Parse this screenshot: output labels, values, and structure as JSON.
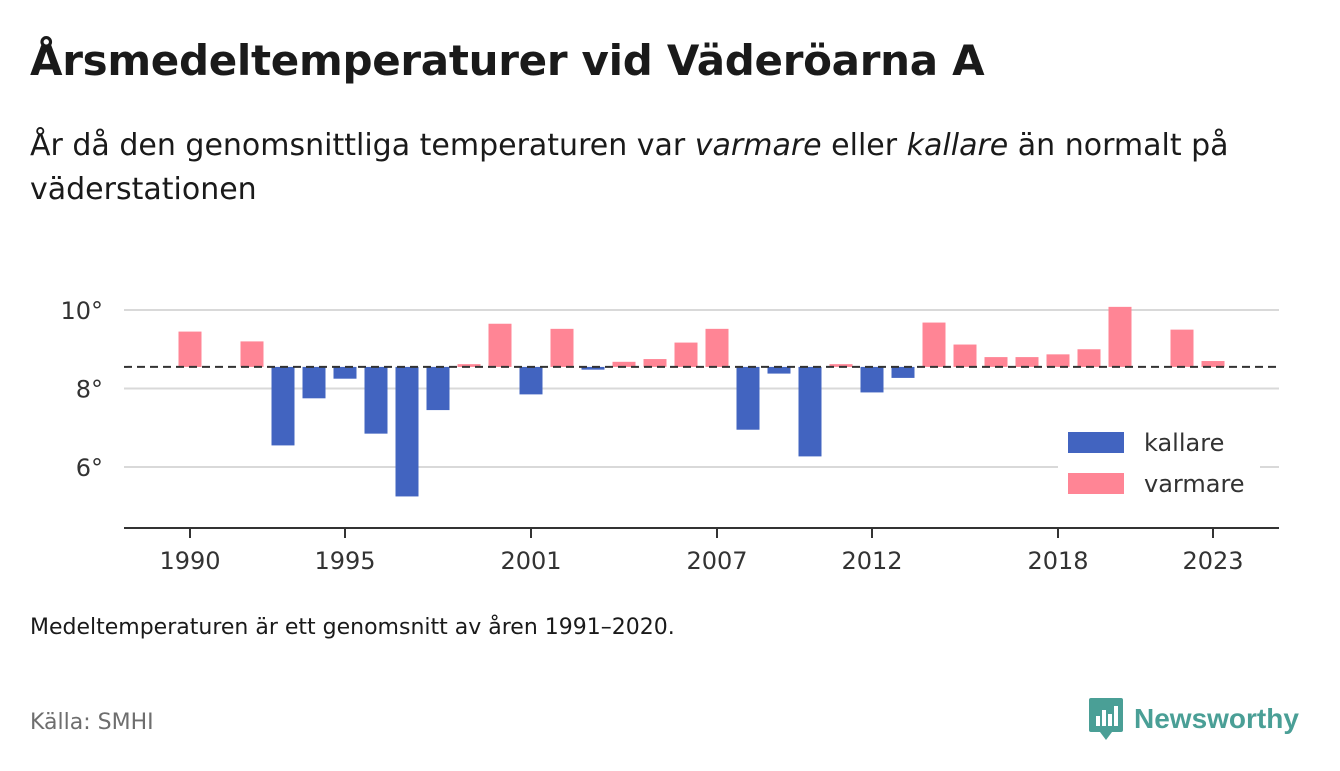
{
  "header": {
    "title": "Årsmedeltemperaturer vid Väderöarna A",
    "subtitle_part1": "År då den genomsnittliga temperaturen var ",
    "subtitle_em1": "varmare",
    "subtitle_part2": " eller ",
    "subtitle_em2": "kallare",
    "subtitle_part3": " än normalt på väderstationen"
  },
  "footer": {
    "note": "Medeltemperaturen är ett genomsnitt av åren 1991–2020.",
    "source": "Källa: SMHI",
    "brand": "Newsworthy"
  },
  "colors": {
    "kallare": "#4264c0",
    "varmare": "#ff8595",
    "brand": "#4a9f96"
  },
  "chart_data": {
    "type": "bar",
    "baseline": 8.55,
    "ylim": [
      4.6,
      10.6
    ],
    "yticks": [
      6,
      8,
      10
    ],
    "ytick_labels": [
      "6°",
      "8°",
      "10°"
    ],
    "xticks": [
      1990,
      1995,
      2001,
      2007,
      2012,
      2018,
      2023
    ],
    "xtick_labels": [
      "1990",
      "1995",
      "2001",
      "2007",
      "2012",
      "2018",
      "2023"
    ],
    "xlim": [
      1987.9,
      2025.2
    ],
    "grid": true,
    "legend_position": "right",
    "legend": [
      {
        "key": "kallare",
        "label": "kallare"
      },
      {
        "key": "varmare",
        "label": "varmare"
      }
    ],
    "years": [
      1990,
      1991,
      1992,
      1993,
      1994,
      1995,
      1996,
      1997,
      1998,
      1999,
      2000,
      2001,
      2002,
      2003,
      2004,
      2005,
      2006,
      2007,
      2008,
      2009,
      2010,
      2011,
      2012,
      2013,
      2014,
      2015,
      2016,
      2017,
      2018,
      2019,
      2020,
      2021,
      2022,
      2023
    ],
    "values": [
      9.45,
      null,
      9.2,
      6.55,
      7.75,
      8.25,
      6.85,
      5.25,
      7.45,
      8.62,
      9.65,
      7.85,
      9.52,
      8.48,
      8.68,
      8.75,
      9.17,
      9.52,
      6.95,
      8.38,
      6.27,
      8.62,
      7.9,
      8.27,
      9.68,
      9.12,
      8.8,
      8.8,
      8.87,
      9.0,
      10.08,
      null,
      9.5,
      8.7
    ]
  }
}
